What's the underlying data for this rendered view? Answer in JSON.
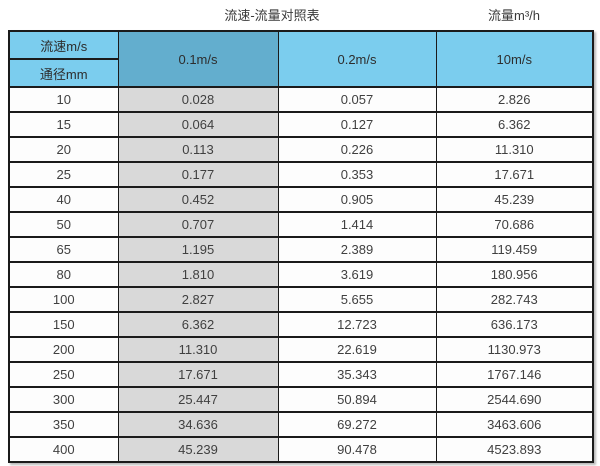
{
  "page_title": "流速-流量对照表",
  "unit_label": "流量m³/h",
  "table": {
    "corner_top": "流速m/s",
    "corner_bottom": "通径mm",
    "velocity_columns": [
      "0.1m/s",
      "0.2m/s",
      "10m/s"
    ],
    "rows": [
      [
        "10",
        "0.028",
        "0.057",
        "2.826"
      ],
      [
        "15",
        "0.064",
        "0.127",
        "6.362"
      ],
      [
        "20",
        "0.113",
        "0.226",
        "11.310"
      ],
      [
        "25",
        "0.177",
        "0.353",
        "17.671"
      ],
      [
        "40",
        "0.452",
        "0.905",
        "45.239"
      ],
      [
        "50",
        "0.707",
        "1.414",
        "70.686"
      ],
      [
        "65",
        "1.195",
        "2.389",
        "119.459"
      ],
      [
        "80",
        "1.810",
        "3.619",
        "180.956"
      ],
      [
        "100",
        "2.827",
        "5.655",
        "282.743"
      ],
      [
        "150",
        "6.362",
        "12.723",
        "636.173"
      ],
      [
        "200",
        "11.310",
        "22.619",
        "1130.973"
      ],
      [
        "250",
        "17.671",
        "35.343",
        "1767.146"
      ],
      [
        "300",
        "25.447",
        "50.894",
        "2544.690"
      ],
      [
        "350",
        "34.636",
        "69.272",
        "3463.606"
      ],
      [
        "400",
        "45.239",
        "90.478",
        "4523.893"
      ]
    ]
  },
  "colors": {
    "header_blue": "#7BCDEE",
    "highlight_blue": "#63AECE",
    "highlight_gray": "#D9D9D9",
    "border_dark": "#1B1B1B"
  },
  "chart_data": {
    "type": "table",
    "title": "流速-流量对照表",
    "unit": "流量m³/h",
    "columns": [
      "通径mm",
      "0.1m/s",
      "0.2m/s",
      "10m/s"
    ],
    "rows": [
      [
        10,
        0.028,
        0.057,
        2.826
      ],
      [
        15,
        0.064,
        0.127,
        6.362
      ],
      [
        20,
        0.113,
        0.226,
        11.31
      ],
      [
        25,
        0.177,
        0.353,
        17.671
      ],
      [
        40,
        0.452,
        0.905,
        45.239
      ],
      [
        50,
        0.707,
        1.414,
        70.686
      ],
      [
        65,
        1.195,
        2.389,
        119.459
      ],
      [
        80,
        1.81,
        3.619,
        180.956
      ],
      [
        100,
        2.827,
        5.655,
        282.743
      ],
      [
        150,
        6.362,
        12.723,
        636.173
      ],
      [
        200,
        11.31,
        22.619,
        1130.973
      ],
      [
        250,
        17.671,
        35.343,
        1767.146
      ],
      [
        300,
        25.447,
        50.894,
        2544.69
      ],
      [
        350,
        34.636,
        69.272,
        3463.606
      ],
      [
        400,
        45.239,
        90.478,
        4523.893
      ]
    ]
  }
}
